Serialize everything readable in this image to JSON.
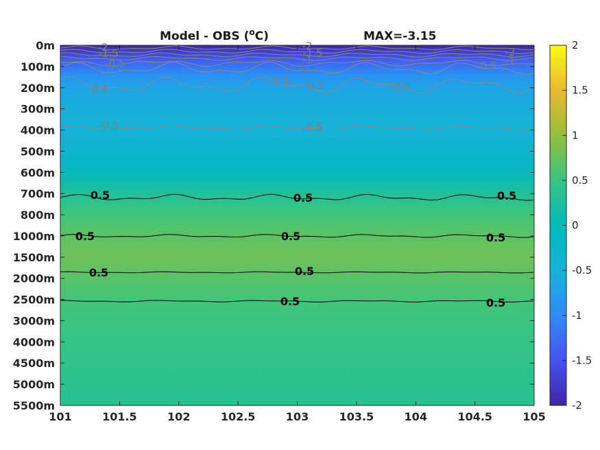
{
  "chart_data": {
    "type": "heatmap",
    "title_left": "Model - OBS (",
    "title_unit_sup": "o",
    "title_unit_rest": "C)",
    "title_right": "MAX=-3.15",
    "x_ticks": [
      "101",
      "101.5",
      "102",
      "102.5",
      "103",
      "103.5",
      "104",
      "104.5",
      "105"
    ],
    "xlim": [
      101,
      105
    ],
    "y_ticks": [
      "0m",
      "100m",
      "200m",
      "300m",
      "400m",
      "500m",
      "600m",
      "700m",
      "800m",
      "1000m",
      "1500m",
      "2000m",
      "2500m",
      "3000m",
      "4000m",
      "4500m",
      "5000m",
      "5500m"
    ],
    "y_axis_reversed": true,
    "colorbar": {
      "range": [
        -2,
        2
      ],
      "ticks": [
        "2",
        "1.5",
        "1",
        "0.5",
        "0",
        "-0.5",
        "-1",
        "-1.5",
        "-2"
      ],
      "colormap": "parula"
    },
    "row_values": [
      -2.0,
      -1.4,
      -0.9,
      -0.65,
      -0.55,
      -0.5,
      -0.45,
      -0.3,
      -0.15,
      0.1,
      0.3,
      0.5,
      0.62,
      0.72,
      0.78,
      0.72,
      0.62,
      0.55,
      0.52,
      0.48,
      0.46,
      0.42,
      0.38,
      0.36,
      0.34
    ],
    "contour_labels_black": [
      "0.5",
      "0.5",
      "0.5",
      "0.5",
      "0.5",
      "0.5",
      "0.5",
      "0.5",
      "0.5",
      "0.5",
      "0.5",
      "0.5"
    ],
    "contour_labels_gray": [
      "-2",
      "-1.5",
      "-0.5",
      "-2",
      "-1.5",
      "-1",
      "-2",
      "-1",
      "-0.5",
      "-0.5",
      "-0.5",
      "-0.5",
      "-0.5",
      "-0.5",
      "-0.5"
    ]
  }
}
